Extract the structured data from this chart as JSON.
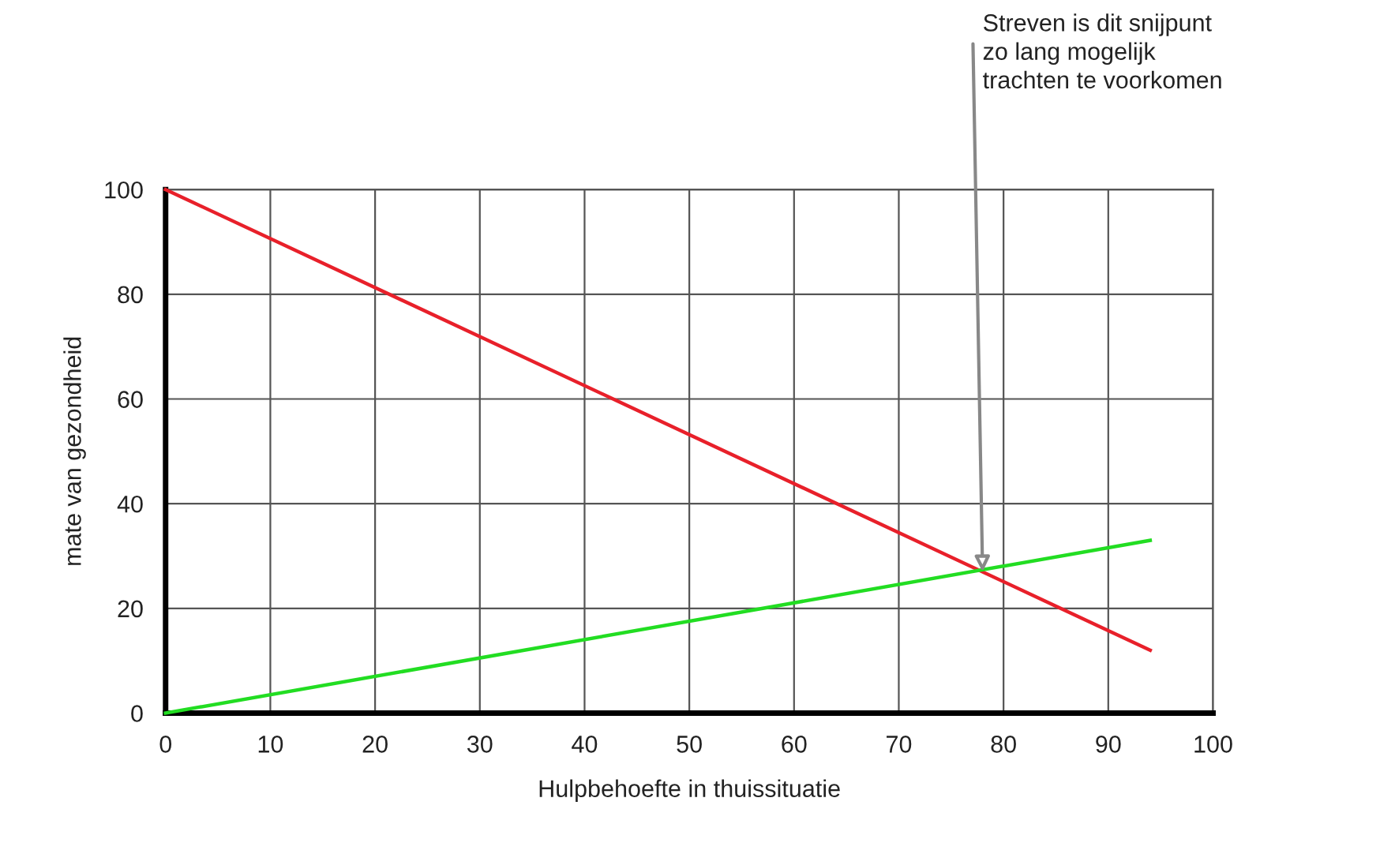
{
  "chart_data": {
    "type": "line",
    "xlabel": "Hulpbehoefte in thuissituatie",
    "ylabel": "mate van gezondheid",
    "series": [
      {
        "color": "#e8202a",
        "values": [
          100,
          12
        ]
      },
      {
        "color": "#22dd22",
        "values": [
          0,
          33
        ]
      }
    ],
    "x": [
      0,
      94
    ],
    "xlim": [
      0,
      100
    ],
    "ylim": [
      0,
      100
    ],
    "xticks": [
      0,
      10,
      20,
      30,
      40,
      50,
      60,
      70,
      80,
      90,
      100
    ],
    "yticks": [
      0,
      20,
      40,
      60,
      80,
      100
    ],
    "grid": true,
    "marker": "none",
    "line_style": "solid",
    "annotations": [
      {
        "text": "Streven is dit snijpunt\nzo lang mogelijk\ntrachten te voorkomen",
        "x": 78,
        "y": 27
      }
    ]
  }
}
